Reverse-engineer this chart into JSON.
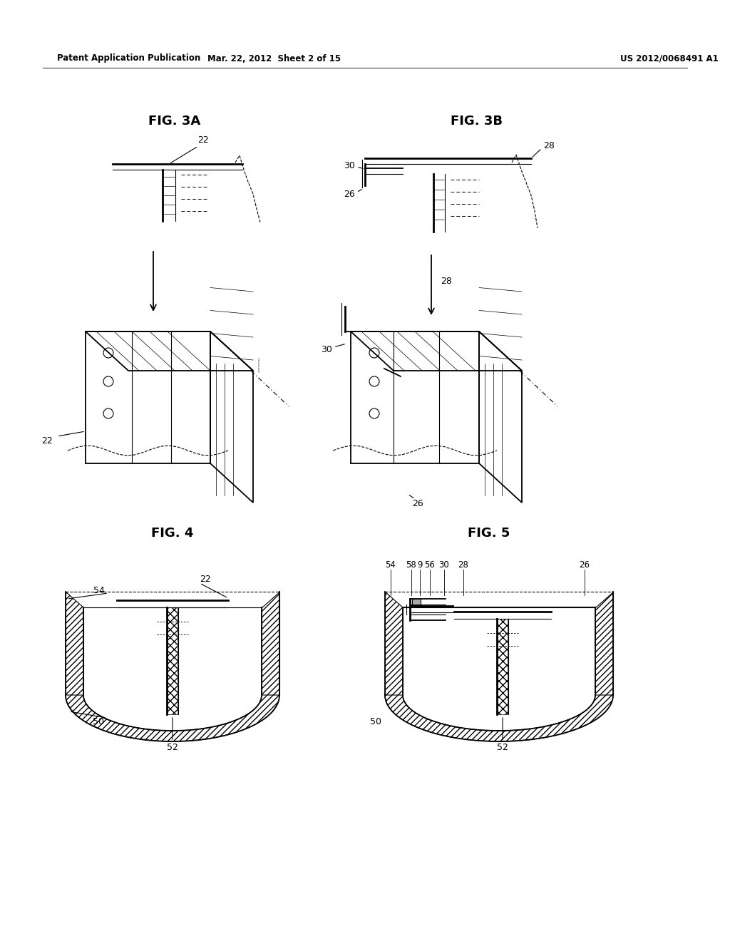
{
  "bg_color": "#ffffff",
  "lc": "#000000",
  "header_left": "Patent Application Publication",
  "header_mid": "Mar. 22, 2012  Sheet 2 of 15",
  "header_right": "US 2012/0068491 A1",
  "fig3a_title": "FIG. 3A",
  "fig3b_title": "FIG. 3B",
  "fig4_title": "FIG. 4",
  "fig5_title": "FIG. 5",
  "lw_thin": 0.8,
  "lw_med": 1.3,
  "lw_thick": 2.0
}
